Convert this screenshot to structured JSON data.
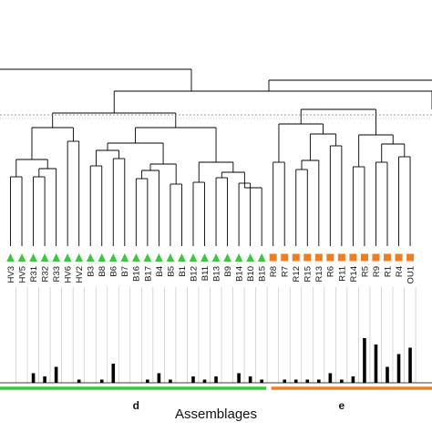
{
  "colors": {
    "green": "#3cc83c",
    "orange": "#ef7d22",
    "line": "#000000",
    "grid": "#c8c8c8"
  },
  "groups": [
    {
      "label": "d",
      "color": "green"
    },
    {
      "label": "e",
      "color": "orange"
    }
  ],
  "samples": [
    {
      "name": "HV3",
      "group": "d",
      "value": 0
    },
    {
      "name": "HV5",
      "group": "d",
      "value": 0
    },
    {
      "name": "R31",
      "group": "d",
      "value": 3
    },
    {
      "name": "R32",
      "group": "d",
      "value": 2
    },
    {
      "name": "R33",
      "group": "d",
      "value": 5
    },
    {
      "name": "HV6",
      "group": "d",
      "value": 0
    },
    {
      "name": "HV2",
      "group": "d",
      "value": 1
    },
    {
      "name": "B3",
      "group": "d",
      "value": 0
    },
    {
      "name": "B8",
      "group": "d",
      "value": 1
    },
    {
      "name": "B6",
      "group": "d",
      "value": 6
    },
    {
      "name": "B7",
      "group": "d",
      "value": 0
    },
    {
      "name": "B16",
      "group": "d",
      "value": 0
    },
    {
      "name": "B17",
      "group": "d",
      "value": 1
    },
    {
      "name": "B4",
      "group": "d",
      "value": 3
    },
    {
      "name": "B5",
      "group": "d",
      "value": 1
    },
    {
      "name": "B1",
      "group": "d",
      "value": 0
    },
    {
      "name": "B12",
      "group": "d",
      "value": 2
    },
    {
      "name": "B11",
      "group": "d",
      "value": 1
    },
    {
      "name": "B13",
      "group": "d",
      "value": 2
    },
    {
      "name": "B9",
      "group": "d",
      "value": 0
    },
    {
      "name": "B14",
      "group": "d",
      "value": 3
    },
    {
      "name": "B10",
      "group": "d",
      "value": 2
    },
    {
      "name": "B15",
      "group": "d",
      "value": 1
    },
    {
      "name": "R8",
      "group": "e",
      "value": 0
    },
    {
      "name": "R7",
      "group": "e",
      "value": 1
    },
    {
      "name": "R12",
      "group": "e",
      "value": 1
    },
    {
      "name": "R15",
      "group": "e",
      "value": 1
    },
    {
      "name": "R13",
      "group": "e",
      "value": 1
    },
    {
      "name": "R6",
      "group": "e",
      "value": 3
    },
    {
      "name": "R11",
      "group": "e",
      "value": 1
    },
    {
      "name": "R14",
      "group": "e",
      "value": 2
    },
    {
      "name": "R5",
      "group": "e",
      "value": 14
    },
    {
      "name": "R9",
      "group": "e",
      "value": 12
    },
    {
      "name": "R1",
      "group": "e",
      "value": 5
    },
    {
      "name": "R4",
      "group": "e",
      "value": 9
    },
    {
      "name": "OU1",
      "group": "e",
      "value": 11
    }
  ],
  "xlabel": "Assemblages"
}
